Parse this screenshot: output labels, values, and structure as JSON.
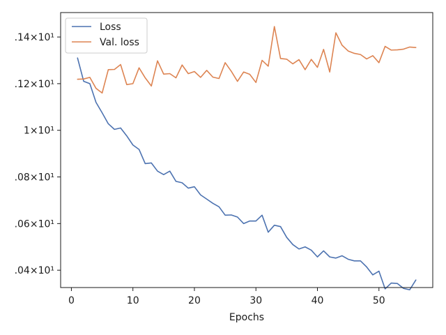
{
  "chart_data": {
    "type": "line",
    "title": "",
    "xlabel": "Epochs",
    "ylabel": "",
    "xlim": [
      -1.75,
      58.75
    ],
    "ylim": [
      20.3257,
      21.5049
    ],
    "xticks": [
      0,
      10,
      20,
      30,
      40,
      50
    ],
    "xtick_labels": [
      "0",
      "10",
      "20",
      "30",
      "40",
      "50"
    ],
    "yticks": [
      20.4,
      20.6,
      20.8,
      21.0,
      21.2,
      21.4
    ],
    "ytick_labels": [
      ".04×10¹",
      ".06×10¹",
      ".08×10¹",
      "1×10¹",
      ".12×10¹",
      ".14×10¹"
    ],
    "grid": false,
    "legend": "top-left",
    "x": [
      1,
      2,
      3,
      4,
      5,
      6,
      7,
      8,
      9,
      10,
      11,
      12,
      13,
      14,
      15,
      16,
      17,
      18,
      19,
      20,
      21,
      22,
      23,
      24,
      25,
      26,
      27,
      28,
      29,
      30,
      31,
      32,
      33,
      34,
      35,
      36,
      37,
      38,
      39,
      40,
      41,
      42,
      43,
      44,
      45,
      46,
      47,
      48,
      49,
      50,
      51,
      52,
      53,
      54,
      55,
      56
    ],
    "series": [
      {
        "name": "Loss",
        "color": "#4c72b0",
        "values": [
          21.31,
          21.21,
          21.2,
          21.12,
          21.075,
          21.028,
          21.004,
          21.01,
          20.976,
          20.937,
          20.918,
          20.857,
          20.86,
          20.825,
          20.81,
          20.825,
          20.781,
          20.775,
          20.752,
          20.758,
          20.723,
          20.705,
          20.687,
          20.672,
          20.636,
          20.637,
          20.628,
          20.6,
          20.611,
          20.611,
          20.636,
          20.563,
          20.593,
          20.587,
          20.541,
          20.51,
          20.491,
          20.5,
          20.486,
          20.457,
          20.483,
          20.457,
          20.452,
          20.462,
          20.447,
          20.44,
          20.44,
          20.414,
          20.38,
          20.396,
          20.32,
          20.345,
          20.343,
          20.322,
          20.316,
          20.358
        ]
      },
      {
        "name": "Val. loss",
        "color": "#dd8452",
        "values": [
          21.219,
          21.22,
          21.227,
          21.18,
          21.16,
          21.26,
          21.261,
          21.282,
          21.196,
          21.2,
          21.268,
          21.225,
          21.19,
          21.298,
          21.241,
          21.243,
          21.225,
          21.28,
          21.243,
          21.252,
          21.227,
          21.257,
          21.228,
          21.222,
          21.29,
          21.253,
          21.21,
          21.25,
          21.24,
          21.205,
          21.3,
          21.275,
          21.445,
          21.308,
          21.305,
          21.285,
          21.303,
          21.26,
          21.304,
          21.27,
          21.347,
          21.25,
          21.418,
          21.365,
          21.34,
          21.33,
          21.325,
          21.306,
          21.32,
          21.29,
          21.36,
          21.344,
          21.345,
          21.348,
          21.357,
          21.355
        ]
      }
    ]
  }
}
